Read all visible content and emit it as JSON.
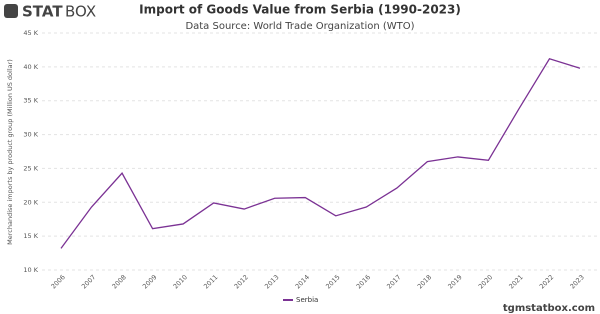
{
  "logo_bold": "STAT",
  "logo_light": "BOX",
  "footer": "tgmstatbox.com",
  "chart_data": {
    "type": "line",
    "title": "Import of Goods Value from Serbia (1990-2023)",
    "subtitle": "Data Source: World Trade Organization (WTO)",
    "y_label": "Merchandise imports by product group (Million US dollar)",
    "categories": [
      "2006",
      "2007",
      "2008",
      "2009",
      "2010",
      "2011",
      "2012",
      "2013",
      "2014",
      "2015",
      "2016",
      "2017",
      "2018",
      "2019",
      "2020",
      "2021",
      "2022",
      "2023"
    ],
    "series": [
      {
        "name": "Serbia",
        "color": "#7b3294",
        "values": [
          13200,
          19300,
          24300,
          16100,
          16800,
          19900,
          19000,
          20600,
          20700,
          18000,
          19300,
          22100,
          26000,
          26700,
          26200,
          33800,
          41200,
          39800
        ]
      }
    ],
    "ylim": [
      10000,
      45000
    ],
    "yticks": [
      {
        "value": 10000,
        "label": "10 K"
      },
      {
        "value": 15000,
        "label": "15 K"
      },
      {
        "value": 20000,
        "label": "20 K"
      },
      {
        "value": 25000,
        "label": "25 K"
      },
      {
        "value": 30000,
        "label": "30 K"
      },
      {
        "value": 35000,
        "label": "35 K"
      },
      {
        "value": 40000,
        "label": "40 K"
      },
      {
        "value": 45000,
        "label": "45 K"
      }
    ],
    "grid": true,
    "legend": "bottom"
  }
}
